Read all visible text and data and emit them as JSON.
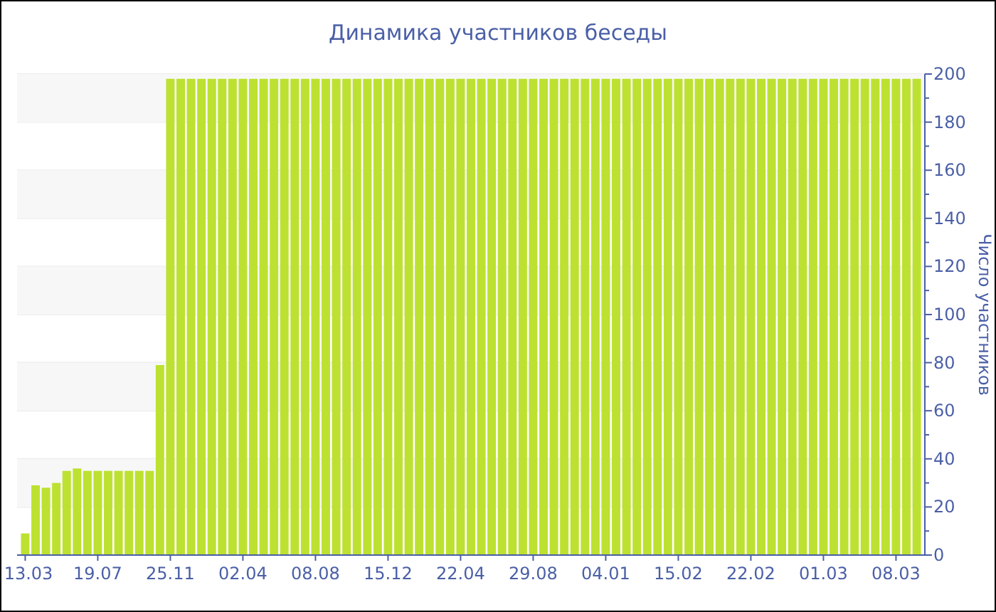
{
  "chart_data": {
    "type": "bar",
    "title": "Динамика участников беседы",
    "ylabel": "Число участников",
    "categories": [
      "13.03",
      null,
      null,
      null,
      null,
      null,
      null,
      "19.07",
      null,
      null,
      null,
      null,
      null,
      null,
      "25.11",
      null,
      null,
      null,
      null,
      null,
      null,
      "02.04",
      null,
      null,
      null,
      null,
      null,
      null,
      "08.08",
      null,
      null,
      null,
      null,
      null,
      null,
      "15.12",
      null,
      null,
      null,
      null,
      null,
      null,
      "22.04",
      null,
      null,
      null,
      null,
      null,
      null,
      "29.08",
      null,
      null,
      null,
      null,
      null,
      null,
      "04.01",
      null,
      null,
      null,
      null,
      null,
      null,
      "15.02",
      null,
      null,
      null,
      null,
      null,
      null,
      "22.02",
      null,
      null,
      null,
      null,
      null,
      null,
      "01.03",
      null,
      null,
      null,
      null,
      null,
      null,
      "08.03",
      null,
      null
    ],
    "values": [
      9,
      29,
      28,
      30,
      35,
      36,
      35,
      35,
      35,
      35,
      35,
      35,
      35,
      79,
      198,
      198,
      198,
      198,
      198,
      198,
      198,
      198,
      198,
      198,
      198,
      198,
      198,
      198,
      198,
      198,
      198,
      198,
      198,
      198,
      198,
      198,
      198,
      198,
      198,
      198,
      198,
      198,
      198,
      198,
      198,
      198,
      198,
      198,
      198,
      198,
      198,
      198,
      198,
      198,
      198,
      198,
      198,
      198,
      198,
      198,
      198,
      198,
      198,
      198,
      198,
      198,
      198,
      198,
      198,
      198,
      198,
      198,
      198,
      198,
      198,
      198,
      198,
      198,
      198,
      198,
      198,
      198,
      198,
      198,
      198,
      198,
      198
    ],
    "color": "#bde130",
    "ylim": [
      0,
      200
    ],
    "yticks": [
      0,
      20,
      40,
      60,
      80,
      100,
      120,
      140,
      160,
      180,
      200
    ],
    "grid": "y"
  }
}
